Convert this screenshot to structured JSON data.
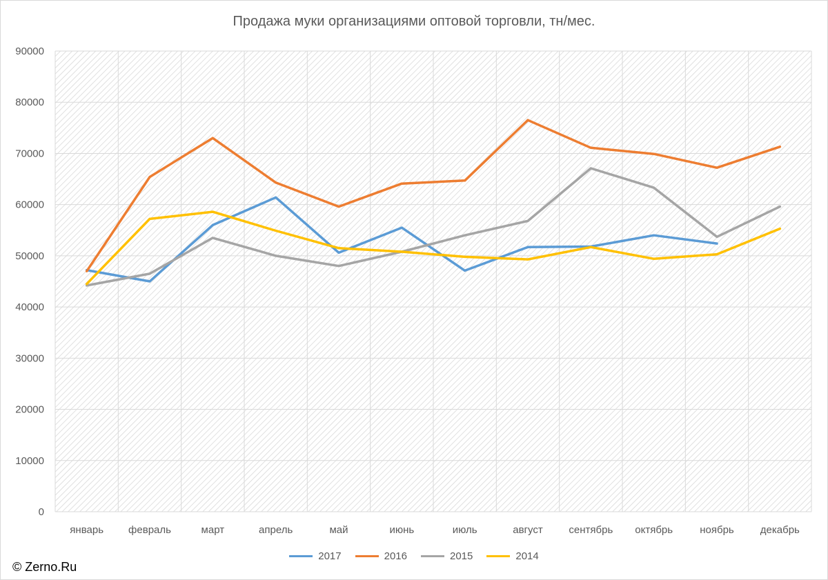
{
  "page": {
    "watermark": "© Zerno.Ru"
  },
  "chart_data": {
    "type": "line",
    "title": "Продажа муки организациями оптовой торговли, тн/мес.",
    "xlabel": "",
    "ylabel": "",
    "ylim": [
      0,
      90000
    ],
    "yticks": [
      "0",
      "10000",
      "20000",
      "30000",
      "40000",
      "50000",
      "60000",
      "70000",
      "80000",
      "90000"
    ],
    "categories": [
      "январь",
      "февраль",
      "март",
      "апрель",
      "май",
      "июнь",
      "июль",
      "август",
      "сентябрь",
      "октябрь",
      "ноябрь",
      "декабрь"
    ],
    "grid": true,
    "legend_position": "bottom",
    "series": [
      {
        "name": "2017",
        "color": "#5B9BD5",
        "values": [
          47200,
          45000,
          56000,
          61400,
          50600,
          55500,
          47100,
          51700,
          51800,
          54000,
          52400,
          null
        ]
      },
      {
        "name": "2016",
        "color": "#ED7D31",
        "values": [
          47000,
          65400,
          73000,
          64300,
          59600,
          64100,
          64700,
          76500,
          71100,
          69900,
          67200,
          71300
        ]
      },
      {
        "name": "2015",
        "color": "#A5A5A5",
        "values": [
          44200,
          46500,
          53500,
          50000,
          48000,
          50800,
          54000,
          56800,
          67100,
          63300,
          53700,
          59600
        ]
      },
      {
        "name": "2014",
        "color": "#FFC000",
        "values": [
          44500,
          57200,
          58600,
          54900,
          51500,
          50800,
          49800,
          49300,
          51700,
          49400,
          50300,
          55300
        ]
      }
    ]
  }
}
